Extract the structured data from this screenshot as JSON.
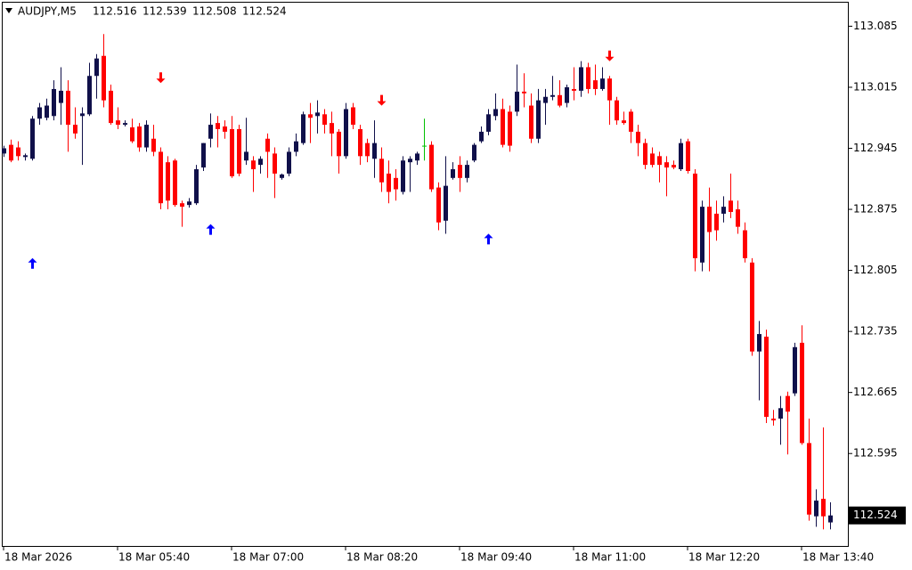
{
  "chart_data": {
    "type": "candlestick",
    "title": "AUDJPY,M5",
    "categories": [
      "18 Mar 2026",
      null,
      null,
      null,
      null,
      null,
      null,
      null,
      null,
      null,
      null,
      null,
      null,
      null,
      null,
      null,
      "18 Mar 05:40",
      null,
      null,
      null,
      null,
      null,
      null,
      null,
      null,
      null,
      null,
      null,
      null,
      null,
      null,
      null,
      "18 Mar 07:00",
      null,
      null,
      null,
      null,
      null,
      null,
      null,
      null,
      null,
      null,
      null,
      null,
      null,
      null,
      null,
      "18 Mar 08:20",
      null,
      null,
      null,
      null,
      null,
      null,
      null,
      null,
      null,
      null,
      null,
      null,
      null,
      null,
      null,
      "18 Mar 09:40",
      null,
      null,
      null,
      null,
      null,
      null,
      null,
      null,
      null,
      null,
      null,
      null,
      null,
      null,
      null,
      "18 Mar 11:00",
      null,
      null,
      null,
      null,
      null,
      null,
      null,
      null,
      null,
      null,
      null,
      null,
      null,
      null,
      null,
      "18 Mar 12:20",
      null,
      null,
      null,
      null,
      null,
      null,
      null,
      null,
      null,
      null,
      null,
      null,
      null,
      null,
      null,
      "18 Mar 13:40",
      null,
      null,
      null,
      null
    ],
    "open": [
      112.939,
      112.949,
      112.946,
      112.935,
      112.933,
      112.979,
      112.98,
      112.982,
      112.997,
      113.011,
      112.972,
      112.982,
      112.984,
      113.028,
      113.051,
      113.011,
      112.977,
      112.972,
      112.969,
      112.97,
      112.946,
      112.956,
      112.941,
      112.929,
      112.931,
      112.882,
      112.88,
      112.882,
      112.923,
      112.956,
      112.974,
      112.97,
      112.967,
      112.967,
      112.931,
      112.931,
      112.926,
      112.956,
      112.939,
      112.911,
      112.916,
      112.941,
      112.951,
      112.984,
      112.982,
      112.984,
      112.974,
      112.964,
      112.936,
      112.992,
      112.967,
      112.951,
      112.933,
      112.933,
      112.916,
      112.911,
      112.895,
      112.929,
      112.931,
      112.948,
      112.949,
      112.9,
      112.862,
      112.911,
      112.926,
      112.911,
      112.931,
      112.953,
      112.964,
      112.982,
      112.99,
      112.987,
      112.987,
      113.01,
      112.994,
      112.956,
      112.997,
      113.004,
      113.006,
      112.997,
      113.013,
      113.011,
      113.038,
      113.023,
      113.013,
      113.025,
      113.0,
      112.977,
      112.987,
      112.964,
      112.951,
      112.939,
      112.936,
      112.929,
      112.926,
      112.921,
      112.953,
      112.916,
      112.814,
      112.878,
      112.87,
      112.87,
      112.885,
      112.875,
      112.851,
      112.814,
      112.712,
      112.729,
      112.635,
      112.635,
      112.661,
      112.664,
      112.722,
      112.607,
      112.523,
      112.543,
      112.516
    ],
    "high": [
      112.948,
      112.955,
      112.953,
      112.939,
      112.982,
      112.997,
      113.002,
      113.023,
      113.038,
      113.023,
      112.992,
      112.992,
      113.043,
      113.053,
      113.076,
      113.018,
      112.992,
      112.977,
      112.979,
      112.974,
      112.977,
      112.972,
      112.946,
      112.936,
      112.933,
      112.885,
      112.888,
      112.926,
      112.951,
      112.985,
      112.982,
      112.977,
      112.982,
      112.972,
      112.98,
      112.936,
      112.936,
      112.962,
      112.946,
      112.916,
      112.946,
      112.962,
      112.987,
      112.997,
      113.0,
      112.99,
      112.987,
      112.967,
      112.997,
      112.997,
      112.972,
      112.956,
      112.977,
      112.946,
      112.931,
      112.921,
      112.936,
      112.936,
      112.941,
      112.979,
      112.953,
      112.906,
      112.936,
      112.929,
      112.936,
      112.931,
      112.951,
      112.97,
      112.99,
      113.008,
      113.002,
      112.994,
      113.041,
      113.031,
      113.008,
      113.013,
      113.013,
      113.028,
      113.023,
      113.018,
      113.038,
      113.045,
      113.043,
      113.041,
      113.038,
      113.028,
      113.004,
      112.987,
      112.99,
      112.972,
      112.956,
      112.946,
      112.941,
      112.936,
      112.931,
      112.956,
      112.956,
      112.921,
      112.885,
      112.9,
      112.885,
      112.89,
      112.916,
      112.885,
      112.86,
      112.819,
      112.747,
      112.737,
      112.645,
      112.661,
      112.666,
      112.722,
      112.742,
      112.635,
      112.554,
      112.625,
      112.539
    ],
    "low": [
      112.935,
      112.929,
      112.931,
      112.931,
      112.931,
      112.972,
      112.977,
      112.977,
      112.972,
      112.941,
      112.956,
      112.926,
      112.982,
      113.002,
      112.992,
      112.972,
      112.967,
      112.97,
      112.951,
      112.941,
      112.941,
      112.936,
      112.875,
      112.875,
      112.878,
      112.855,
      112.877,
      112.88,
      112.919,
      112.946,
      112.946,
      112.956,
      112.911,
      112.913,
      112.926,
      112.895,
      112.916,
      112.911,
      112.888,
      112.909,
      112.913,
      112.936,
      112.949,
      112.951,
      112.962,
      112.962,
      112.936,
      112.916,
      112.933,
      112.967,
      112.926,
      112.929,
      112.911,
      112.895,
      112.882,
      112.885,
      112.892,
      112.895,
      112.926,
      112.931,
      112.895,
      112.851,
      112.847,
      112.909,
      112.895,
      112.906,
      112.929,
      112.951,
      112.96,
      112.977,
      112.946,
      112.941,
      112.982,
      112.992,
      112.951,
      112.951,
      112.972,
      113.0,
      112.992,
      112.992,
      113.0,
      113.004,
      113.008,
      113.006,
      113.011,
      112.972,
      112.972,
      112.972,
      112.951,
      112.936,
      112.921,
      112.923,
      112.906,
      112.89,
      112.921,
      112.919,
      112.916,
      112.804,
      112.804,
      112.804,
      112.839,
      112.86,
      112.865,
      112.847,
      112.814,
      112.707,
      112.656,
      112.63,
      112.627,
      112.605,
      112.594,
      112.661,
      112.605,
      112.518,
      112.511,
      112.508,
      112.508
    ],
    "close": [
      112.945,
      112.931,
      112.936,
      112.937,
      112.979,
      112.992,
      112.994,
      113.013,
      113.011,
      112.972,
      112.962,
      112.985,
      113.028,
      113.048,
      113.0,
      112.974,
      112.972,
      112.974,
      112.953,
      112.946,
      112.972,
      112.941,
      112.882,
      112.885,
      112.88,
      112.878,
      112.884,
      112.921,
      112.951,
      112.972,
      112.967,
      112.964,
      112.913,
      112.916,
      112.941,
      112.921,
      112.933,
      112.941,
      112.916,
      112.915,
      112.941,
      112.953,
      112.984,
      112.98,
      112.986,
      112.972,
      112.962,
      112.936,
      112.99,
      112.972,
      112.936,
      112.936,
      112.951,
      112.906,
      112.895,
      112.898,
      112.931,
      112.933,
      112.939,
      112.948,
      112.898,
      112.86,
      112.902,
      112.921,
      112.911,
      112.926,
      112.949,
      112.964,
      112.984,
      112.99,
      112.949,
      112.948,
      113.01,
      113.008,
      112.956,
      113.0,
      113.004,
      113.006,
      112.994,
      113.015,
      113.011,
      113.038,
      113.013,
      113.013,
      113.025,
      113.0,
      112.977,
      112.974,
      112.964,
      112.951,
      112.926,
      112.926,
      112.926,
      112.923,
      112.923,
      112.951,
      112.919,
      112.819,
      112.878,
      112.849,
      112.851,
      112.878,
      112.872,
      112.855,
      112.819,
      112.712,
      112.732,
      112.637,
      112.633,
      112.647,
      112.643,
      112.717,
      112.607,
      112.525,
      112.541,
      112.523,
      112.524
    ],
    "up_color": "#10104a",
    "down_color": "#ff0000",
    "doji_color": "#00c000",
    "buy_signals": [
      {
        "index": 4,
        "price": 112.813
      },
      {
        "index": 29,
        "price": 112.852
      },
      {
        "index": 68,
        "price": 112.841
      }
    ],
    "sell_signals": [
      {
        "index": 22,
        "price": 113.026
      },
      {
        "index": 53,
        "price": 113.0
      },
      {
        "index": 85,
        "price": 113.051
      }
    ],
    "buy_color": "#0000ff",
    "sell_color": "#ff0000",
    "ylim": [
      112.489,
      113.112
    ],
    "yticks": [
      113.085,
      113.015,
      112.945,
      112.875,
      112.805,
      112.735,
      112.665,
      112.595
    ]
  }
}
